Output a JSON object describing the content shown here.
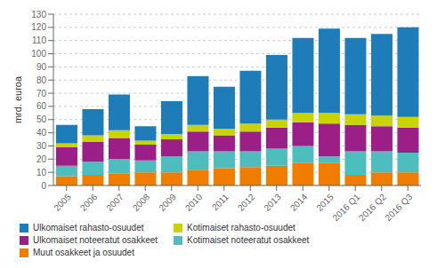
{
  "chart_data": {
    "type": "bar",
    "stacked": true,
    "ylabel": "mrd. euroa",
    "categories": [
      "2005",
      "2006",
      "2007",
      "2008",
      "2009",
      "2010",
      "2011",
      "2012",
      "2013",
      "2014",
      "2015",
      "2016 Q1",
      "2016 Q2",
      "2016 Q3"
    ],
    "series": [
      {
        "name": "Muut osakkeet ja osuudet",
        "color": "#f07d00",
        "values": [
          7,
          8,
          9,
          10,
          10,
          12,
          13,
          14,
          15,
          17,
          17,
          8,
          10,
          10
        ]
      },
      {
        "name": "Kotimaiset noteeratut osakkeet",
        "color": "#4dbdbd",
        "values": [
          8,
          10,
          11,
          9,
          12,
          14,
          13,
          12,
          13,
          13,
          5,
          18,
          16,
          15
        ]
      },
      {
        "name": "Ulkomaiset noteeratut osakkeet",
        "color": "#9b1f87",
        "values": [
          14,
          15,
          16,
          12,
          13,
          15,
          12,
          15,
          16,
          18,
          25,
          20,
          19,
          19
        ]
      },
      {
        "name": "Kotimaiset rahasto-osuudet",
        "color": "#c8d400",
        "values": [
          3,
          5,
          6,
          3,
          4,
          5,
          5,
          6,
          6,
          7,
          8,
          8,
          8,
          8
        ]
      },
      {
        "name": "Ulkomaiset rahasto-osuudet",
        "color": "#1e7db8",
        "values": [
          14,
          20,
          27,
          11,
          25,
          37,
          32,
          40,
          49,
          57,
          64,
          58,
          62,
          68
        ]
      }
    ],
    "ylim": [
      0,
      130
    ],
    "yticks": [
      0,
      10,
      20,
      30,
      40,
      50,
      60,
      70,
      80,
      90,
      100,
      110,
      120,
      130
    ],
    "grid": true,
    "legend": "bottom"
  }
}
